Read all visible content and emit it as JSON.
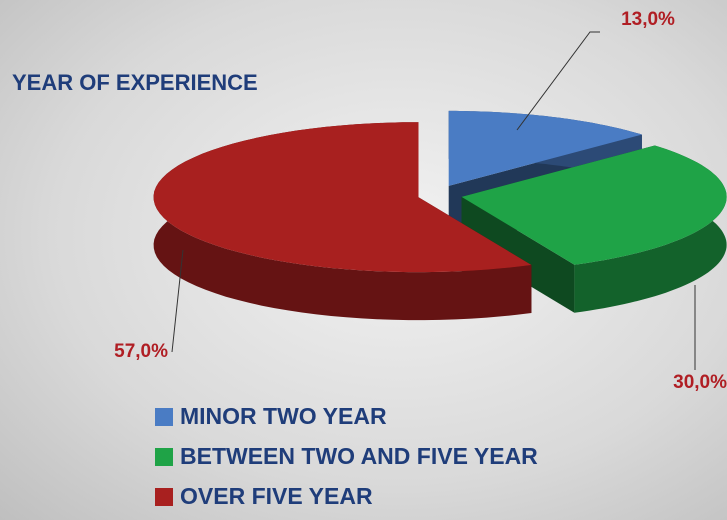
{
  "chart_data": {
    "type": "pie3d",
    "title": "YEAR OF EXPERIENCE",
    "categories": [
      "MINOR TWO YEAR",
      "BETWEEN TWO AND FIVE YEAR",
      "OVER FIVE YEAR"
    ],
    "values": [
      13,
      30,
      57
    ],
    "value_labels": [
      "13,0%",
      "30,0%",
      "57,0%"
    ],
    "colors": [
      "#4a7cc4",
      "#1fa347",
      "#a8201f"
    ]
  }
}
